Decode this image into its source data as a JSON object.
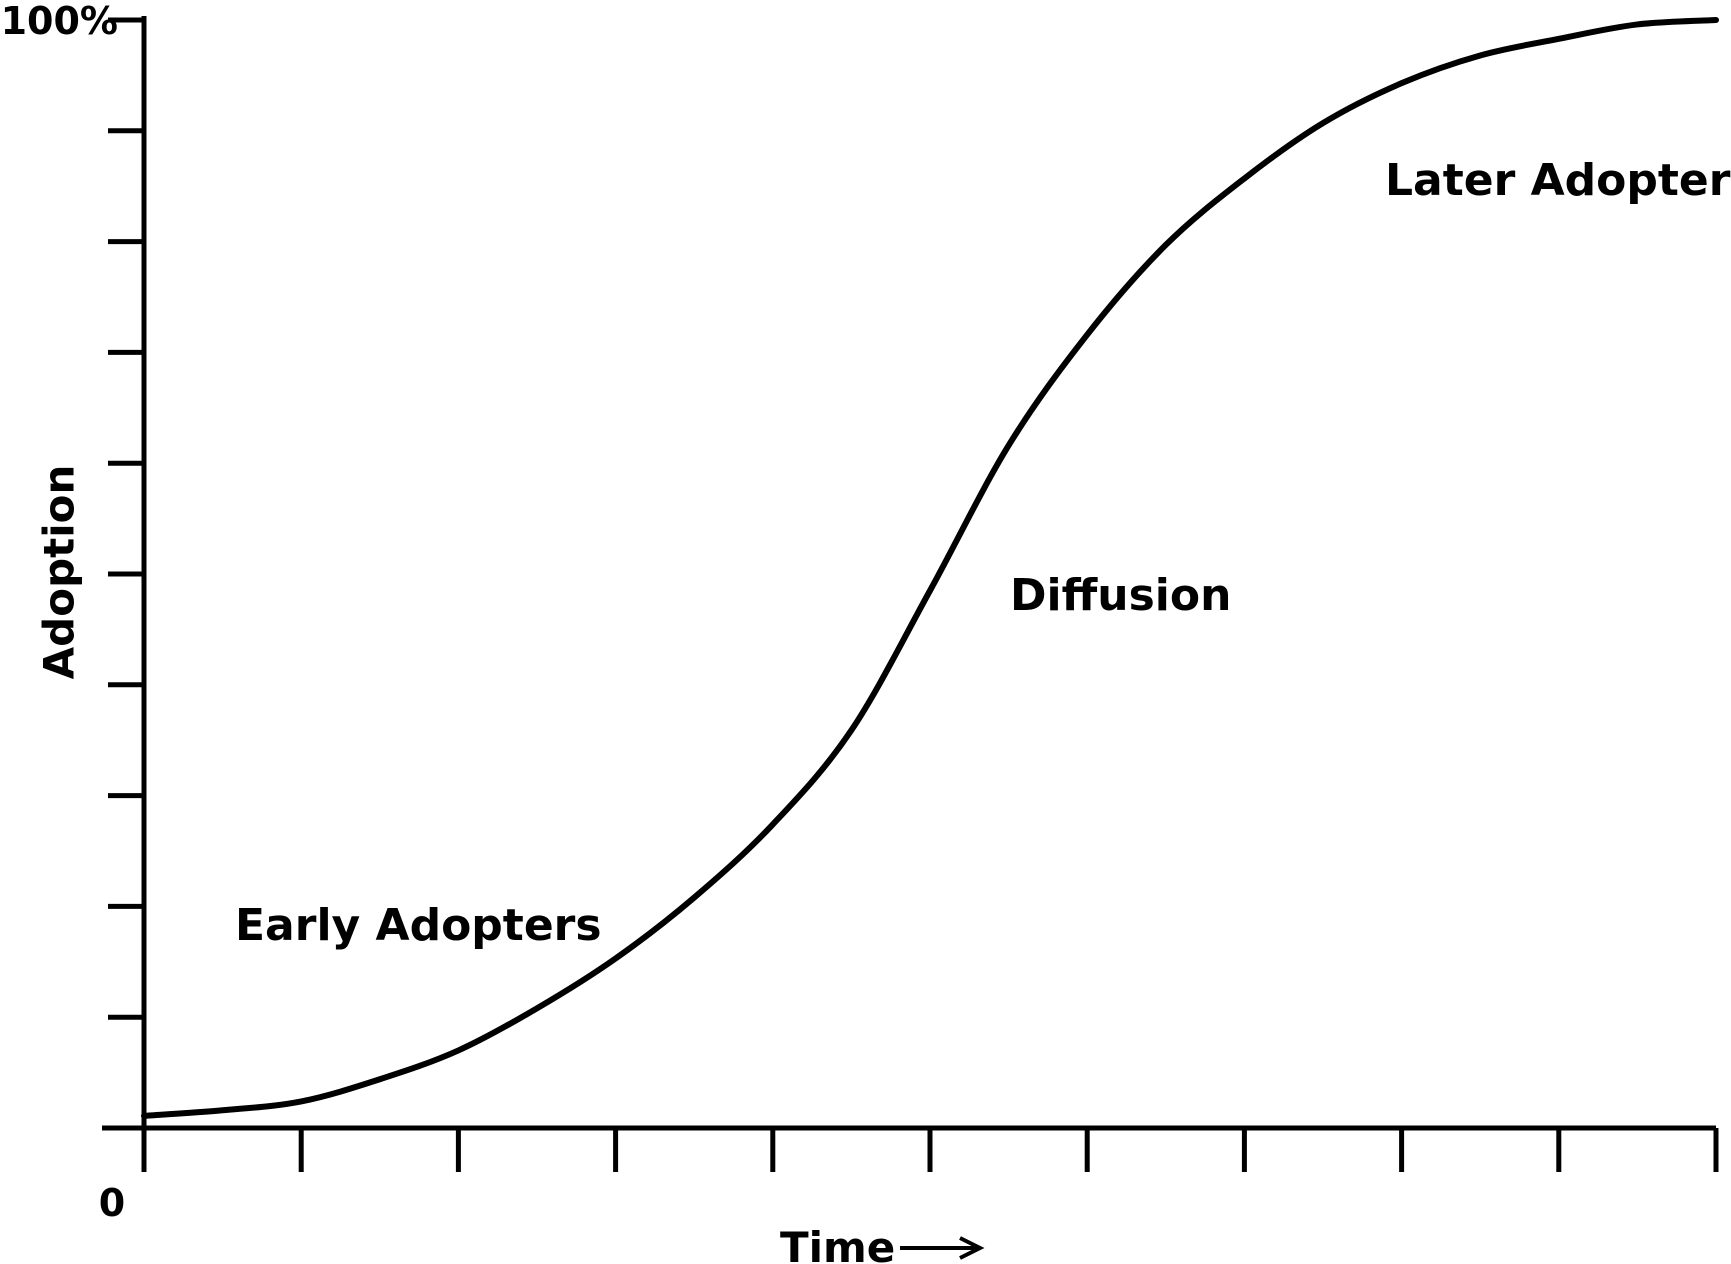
{
  "chart_data": {
    "type": "line",
    "x_label": "Time",
    "y_label": "Adoption",
    "xlim": [
      0,
      10
    ],
    "ylim": [
      0,
      100
    ],
    "xticks": [
      0
    ],
    "x_minor_ticks": [
      1,
      2,
      3,
      4,
      5,
      6,
      7,
      8,
      9,
      10
    ],
    "yticks": [
      {
        "value": 100,
        "label": "100%"
      }
    ],
    "y_minor_ticks": [
      10,
      20,
      30,
      40,
      50,
      60,
      70,
      80,
      90
    ],
    "x": [
      0,
      0.5,
      1,
      1.5,
      2,
      2.5,
      3,
      3.5,
      4,
      4.5,
      5,
      5.5,
      6,
      6.5,
      7,
      7.5,
      8,
      8.5,
      9,
      9.5,
      10
    ],
    "series": [
      {
        "name": "Adoption",
        "color": "#000000",
        "values": [
          1.1,
          1.6,
          2.4,
          4.4,
          7,
          10.8,
          15.3,
          20.8,
          27.4,
          35.9,
          48.5,
          61.6,
          71.6,
          79.7,
          85.7,
          90.7,
          94.3,
          96.8,
          98.3,
          99.6,
          100
        ]
      }
    ],
    "annotations": [
      "Early Adopters",
      "Diffusion",
      "Later Adopters"
    ]
  }
}
